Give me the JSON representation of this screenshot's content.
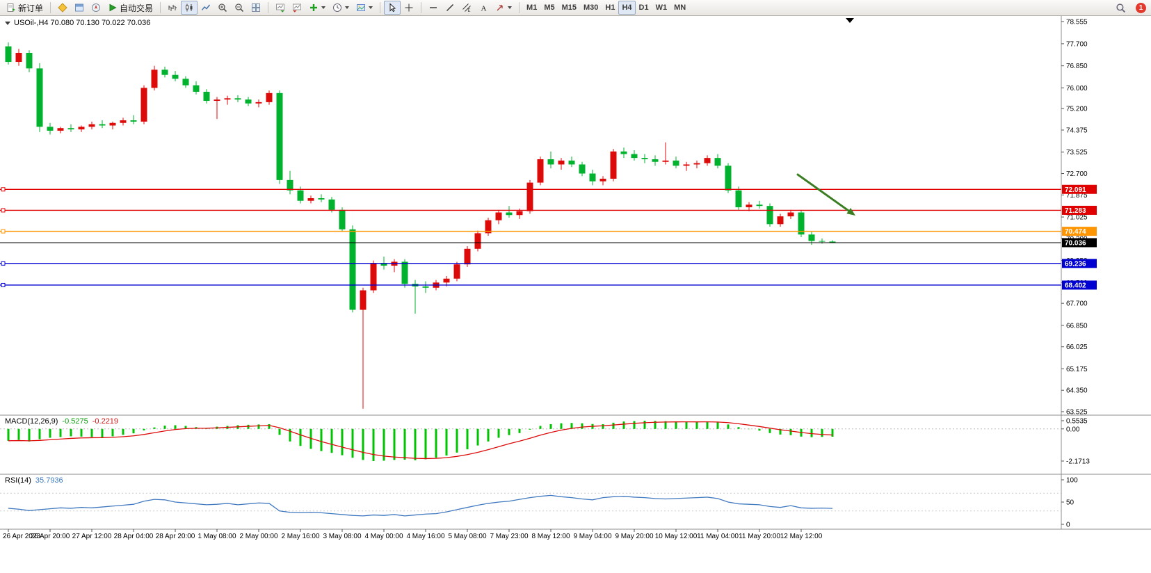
{
  "toolbar": {
    "new_order_label": "新订单",
    "autotrading_label": "自动交易",
    "timeframes": [
      "M1",
      "M5",
      "M15",
      "M30",
      "H1",
      "H4",
      "D1",
      "W1",
      "MN"
    ],
    "active_timeframe": "H4",
    "notification_count": "1"
  },
  "chart": {
    "title_line": "USOil-,H4 70.080 70.130 70.022 70.036"
  },
  "macd": {
    "name": "MACD(12,26,9)",
    "main": "-0.5275",
    "signal": "-0.2219"
  },
  "rsi": {
    "name": "RSI(14)",
    "value": "35.7936"
  },
  "chart_data": {
    "type": "candlestick",
    "symbol": "USOil-",
    "timeframe": "H4",
    "ohlc": {
      "open": 70.08,
      "high": 70.13,
      "low": 70.022,
      "close": 70.036
    },
    "colors": {
      "bull": "#dd0a0a",
      "bear": "#00b22d",
      "macd_hist": "#00c400",
      "macd_signal": "#dd0a0a",
      "rsi": "#4079c0"
    },
    "y_axis": {
      "tick_labels": [
        "78.555",
        "77.700",
        "76.850",
        "76.000",
        "75.200",
        "74.375",
        "73.525",
        "72.700",
        "71.875",
        "71.025",
        "70.200",
        "69.350",
        "68.500",
        "67.700",
        "66.850",
        "66.025",
        "65.175",
        "64.350",
        "63.525"
      ]
    },
    "x_labels": [
      "26 Apr 2023",
      "26 Apr 20:00",
      "27 Apr 12:00",
      "28 Apr 04:00",
      "28 Apr 20:00",
      "1 May 08:00",
      "2 May 00:00",
      "2 May 16:00",
      "3 May 08:00",
      "4 May 00:00",
      "4 May 16:00",
      "5 May 08:00",
      "7 May 23:00",
      "8 May 12:00",
      "9 May 04:00",
      "9 May 20:00",
      "10 May 12:00",
      "11 May 04:00",
      "11 May 20:00",
      "12 May 12:00"
    ],
    "candles": [
      [
        77.6,
        77.75,
        76.9,
        77.0
      ],
      [
        77.0,
        77.5,
        76.85,
        77.35
      ],
      [
        77.35,
        77.45,
        76.6,
        76.75
      ],
      [
        76.75,
        76.95,
        74.3,
        74.5
      ],
      [
        74.5,
        74.65,
        74.2,
        74.35
      ],
      [
        74.35,
        74.5,
        74.25,
        74.45
      ],
      [
        74.45,
        74.6,
        74.3,
        74.4
      ],
      [
        74.4,
        74.55,
        74.3,
        74.5
      ],
      [
        74.5,
        74.7,
        74.4,
        74.6
      ],
      [
        74.6,
        74.75,
        74.45,
        74.55
      ],
      [
        74.55,
        74.7,
        74.4,
        74.65
      ],
      [
        74.65,
        74.85,
        74.55,
        74.75
      ],
      [
        74.75,
        74.95,
        74.6,
        74.7
      ],
      [
        74.7,
        76.1,
        74.6,
        76.0
      ],
      [
        76.0,
        76.85,
        75.9,
        76.7
      ],
      [
        76.7,
        76.82,
        76.4,
        76.5
      ],
      [
        76.5,
        76.65,
        76.25,
        76.35
      ],
      [
        76.35,
        76.45,
        76.0,
        76.1
      ],
      [
        76.1,
        76.25,
        75.75,
        75.85
      ],
      [
        75.85,
        75.95,
        75.4,
        75.5
      ],
      [
        75.5,
        75.65,
        74.8,
        75.55
      ],
      [
        75.55,
        75.7,
        75.35,
        75.6
      ],
      [
        75.6,
        75.72,
        75.45,
        75.55
      ],
      [
        75.55,
        75.65,
        75.3,
        75.4
      ],
      [
        75.4,
        75.55,
        75.25,
        75.45
      ],
      [
        75.45,
        75.9,
        75.35,
        75.8
      ],
      [
        75.8,
        75.9,
        72.3,
        72.45
      ],
      [
        72.45,
        72.8,
        71.9,
        72.05
      ],
      [
        72.05,
        72.2,
        71.55,
        71.65
      ],
      [
        71.65,
        71.85,
        71.55,
        71.75
      ],
      [
        71.75,
        71.9,
        71.6,
        71.7
      ],
      [
        71.7,
        71.8,
        71.2,
        71.3
      ],
      [
        71.3,
        71.4,
        70.45,
        70.55
      ],
      [
        70.55,
        70.7,
        67.35,
        67.45
      ],
      [
        67.45,
        68.3,
        63.64,
        68.2
      ],
      [
        68.2,
        69.35,
        68.1,
        69.25
      ],
      [
        69.25,
        69.5,
        69.0,
        69.15
      ],
      [
        69.15,
        69.4,
        68.9,
        69.3
      ],
      [
        69.3,
        69.4,
        68.3,
        68.45
      ],
      [
        68.45,
        68.6,
        67.3,
        68.35
      ],
      [
        68.35,
        68.55,
        68.1,
        68.3
      ],
      [
        68.3,
        68.6,
        68.2,
        68.5
      ],
      [
        68.5,
        68.75,
        68.35,
        68.65
      ],
      [
        68.65,
        69.3,
        68.55,
        69.2
      ],
      [
        69.2,
        69.9,
        69.1,
        69.8
      ],
      [
        69.8,
        70.5,
        69.7,
        70.4
      ],
      [
        70.4,
        71.0,
        70.3,
        70.9
      ],
      [
        70.9,
        71.3,
        70.75,
        71.2
      ],
      [
        71.2,
        71.45,
        71.0,
        71.1
      ],
      [
        71.1,
        71.35,
        70.95,
        71.25
      ],
      [
        71.25,
        72.45,
        71.15,
        72.35
      ],
      [
        72.35,
        73.35,
        72.25,
        73.25
      ],
      [
        73.25,
        73.55,
        72.9,
        73.05
      ],
      [
        73.05,
        73.3,
        72.85,
        73.2
      ],
      [
        73.2,
        73.35,
        72.95,
        73.05
      ],
      [
        73.05,
        73.15,
        72.6,
        72.7
      ],
      [
        72.7,
        72.85,
        72.25,
        72.4
      ],
      [
        72.4,
        72.6,
        72.25,
        72.5
      ],
      [
        72.5,
        73.65,
        72.4,
        73.55
      ],
      [
        73.55,
        73.7,
        73.3,
        73.45
      ],
      [
        73.45,
        73.6,
        73.2,
        73.3
      ],
      [
        73.3,
        73.45,
        73.1,
        73.25
      ],
      [
        73.25,
        73.4,
        73.0,
        73.15
      ],
      [
        73.15,
        73.9,
        73.05,
        73.2
      ],
      [
        73.2,
        73.35,
        72.9,
        73.0
      ],
      [
        73.0,
        73.15,
        72.8,
        73.05
      ],
      [
        73.05,
        73.2,
        72.9,
        73.1
      ],
      [
        73.1,
        73.4,
        73.0,
        73.3
      ],
      [
        73.3,
        73.45,
        72.9,
        73.0
      ],
      [
        73.0,
        73.1,
        71.95,
        72.05
      ],
      [
        72.05,
        72.2,
        71.3,
        71.4
      ],
      [
        71.4,
        71.6,
        71.25,
        71.5
      ],
      [
        71.5,
        71.65,
        71.35,
        71.45
      ],
      [
        71.45,
        71.55,
        70.65,
        70.75
      ],
      [
        70.75,
        71.15,
        70.65,
        71.05
      ],
      [
        71.05,
        71.3,
        70.95,
        71.2
      ],
      [
        71.2,
        71.3,
        70.25,
        70.35
      ],
      [
        70.35,
        70.45,
        69.95,
        70.1
      ],
      [
        70.1,
        70.2,
        70.0,
        70.08
      ],
      [
        70.08,
        70.13,
        70.02,
        70.04
      ]
    ],
    "hlines": [
      {
        "label": "72.091",
        "price": 72.091,
        "color": "#e00000",
        "handle": true
      },
      {
        "label": "71.283",
        "price": 71.283,
        "color": "#e00000",
        "handle": true
      },
      {
        "label": "70.474",
        "price": 70.474,
        "color": "#ff9500",
        "handle": true
      },
      {
        "label": "70.036",
        "price": 70.036,
        "color": "#000000",
        "handle": false
      },
      {
        "label": "69.236",
        "price": 69.236,
        "color": "#0000d0",
        "handle": true
      },
      {
        "label": "68.402",
        "price": 68.402,
        "color": "#0000d0",
        "handle": true
      }
    ],
    "trend_arrow": {
      "from": [
        75.6,
        72.68
      ],
      "to": [
        81.2,
        71.08
      ],
      "color": "#3a7d23"
    },
    "indicators": [
      {
        "name": "MACD",
        "params": "12,26,9",
        "histogram": [
          -0.8,
          -0.75,
          -0.85,
          -0.7,
          -0.6,
          -0.55,
          -0.5,
          -0.52,
          -0.55,
          -0.58,
          -0.5,
          -0.4,
          -0.3,
          -0.1,
          0.1,
          0.22,
          0.25,
          0.2,
          0.12,
          0.05,
          0.15,
          0.2,
          0.25,
          0.28,
          0.3,
          0.32,
          -0.4,
          -0.85,
          -1.15,
          -1.35,
          -1.5,
          -1.62,
          -1.78,
          -1.95,
          -2.1,
          -2.1713,
          -2.15,
          -2.1,
          -2.08,
          -2.12,
          -2.05,
          -1.95,
          -1.8,
          -1.6,
          -1.38,
          -1.12,
          -0.85,
          -0.6,
          -0.42,
          -0.28,
          -0.05,
          0.2,
          0.32,
          0.38,
          0.4,
          0.38,
          0.33,
          0.32,
          0.42,
          0.5,
          0.53,
          0.5535,
          0.54,
          0.52,
          0.5,
          0.48,
          0.47,
          0.48,
          0.44,
          0.3,
          0.12,
          -0.02,
          -0.12,
          -0.28,
          -0.38,
          -0.42,
          -0.52,
          -0.56,
          -0.54,
          -0.5275
        ],
        "current_main": -0.5275,
        "current_signal": -0.2219,
        "scale_labels": [
          "0.5535",
          "0.00",
          "-2.1713"
        ],
        "scale_values": [
          0.5535,
          0,
          -2.1713
        ]
      },
      {
        "name": "RSI",
        "params": "14",
        "values": [
          36,
          34,
          31,
          33,
          35,
          37,
          36,
          38,
          37,
          39,
          41,
          43,
          45,
          52,
          56,
          55,
          50,
          48,
          46,
          44,
          45,
          47,
          44,
          46,
          48,
          47,
          30,
          27,
          26,
          27,
          26,
          24,
          22,
          20,
          19,
          21,
          20,
          22,
          19,
          21,
          23,
          24,
          28,
          33,
          38,
          43,
          47,
          50,
          52,
          56,
          60,
          63,
          65,
          62,
          60,
          57,
          55,
          60,
          62,
          63,
          61,
          60,
          58,
          57,
          58,
          59,
          60,
          61,
          58,
          50,
          46,
          45,
          44,
          40,
          38,
          42,
          37,
          36,
          36.5,
          35.7936
        ],
        "current": 35.7936,
        "scale_labels": [
          "100",
          "50",
          "0"
        ],
        "scale_values": [
          100,
          50,
          0
        ],
        "levels": [
          70,
          30
        ]
      }
    ]
  }
}
